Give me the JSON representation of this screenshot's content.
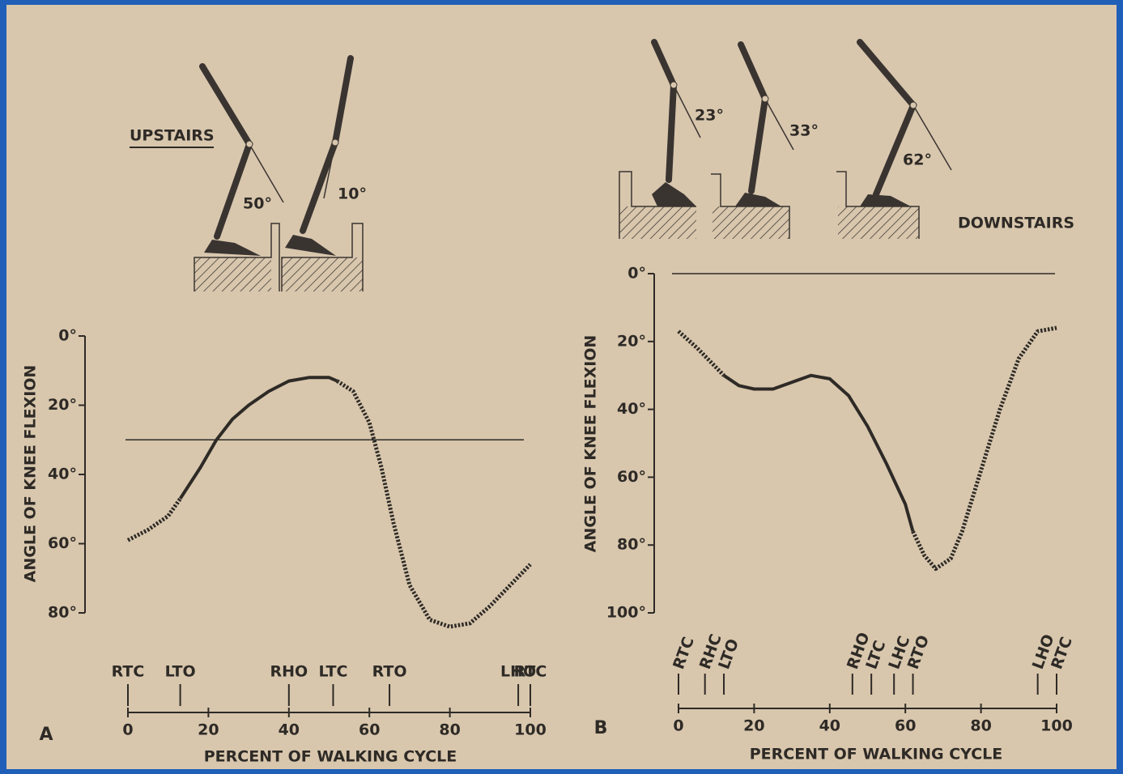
{
  "chart_data": [
    {
      "type": "line",
      "panel": "A",
      "title": "UPSTAIRS",
      "xlabel": "PERCENT OF WALKING CYCLE",
      "ylabel": "ANGLE OF KNEE FLEXION",
      "xlim": [
        0,
        100
      ],
      "xticks": [
        0,
        20,
        40,
        60,
        80,
        100
      ],
      "ylim": [
        80,
        0
      ],
      "yticks": [
        {
          "value": 0,
          "label": "0°"
        },
        {
          "value": 20,
          "label": "20°"
        },
        {
          "value": 40,
          "label": "40°"
        },
        {
          "value": 60,
          "label": "60°"
        },
        {
          "value": 80,
          "label": "80°"
        }
      ],
      "ref_line": 30,
      "segments": [
        {
          "style": "dotted",
          "x": [
            0,
            5,
            10,
            13
          ],
          "values": [
            59,
            56,
            52,
            47
          ]
        },
        {
          "style": "solid",
          "x": [
            13,
            18,
            22,
            26,
            30,
            35,
            40,
            45,
            50,
            52
          ],
          "values": [
            47,
            38,
            30,
            24,
            20,
            16,
            13,
            12,
            12,
            13
          ]
        },
        {
          "style": "dotted",
          "x": [
            52,
            56,
            60,
            63,
            66,
            70,
            75,
            80,
            85,
            90,
            95,
            100
          ],
          "values": [
            13,
            16,
            25,
            38,
            54,
            72,
            82,
            84,
            83,
            78,
            72,
            66
          ]
        }
      ],
      "events": [
        {
          "label": "RTC",
          "x": 0
        },
        {
          "label": "LTO",
          "x": 13
        },
        {
          "label": "RHO",
          "x": 40
        },
        {
          "label": "LTC",
          "x": 51
        },
        {
          "label": "RTO",
          "x": 65
        },
        {
          "label": "LHO",
          "x": 97
        },
        {
          "label": "RTC",
          "x": 100
        }
      ],
      "annotations": [
        "50°",
        "10°"
      ]
    },
    {
      "type": "line",
      "panel": "B",
      "title": "DOWNSTAIRS",
      "xlabel": "PERCENT OF WALKING CYCLE",
      "ylabel": "ANGLE OF KNEE FLEXION",
      "xlim": [
        0,
        100
      ],
      "xticks": [
        0,
        20,
        40,
        60,
        80,
        100
      ],
      "ylim": [
        100,
        0
      ],
      "yticks": [
        {
          "value": 0,
          "label": "0°"
        },
        {
          "value": 20,
          "label": "20°"
        },
        {
          "value": 40,
          "label": "40°"
        },
        {
          "value": 60,
          "label": "60°"
        },
        {
          "value": 80,
          "label": "80°"
        },
        {
          "value": 100,
          "label": "100°"
        }
      ],
      "ref_line": 0,
      "segments": [
        {
          "style": "dotted",
          "x": [
            0,
            5,
            12
          ],
          "values": [
            17,
            22,
            30
          ]
        },
        {
          "style": "solid",
          "x": [
            12,
            16,
            20,
            25,
            30,
            35,
            40,
            45,
            50,
            55,
            60,
            62
          ],
          "values": [
            30,
            33,
            34,
            34,
            32,
            30,
            31,
            36,
            45,
            56,
            68,
            76
          ]
        },
        {
          "style": "dotted",
          "x": [
            62,
            65,
            68,
            72,
            75,
            80,
            85,
            90,
            95,
            100
          ],
          "values": [
            76,
            83,
            87,
            84,
            76,
            58,
            40,
            25,
            17,
            16
          ]
        }
      ],
      "events": [
        {
          "label": "RTC",
          "x": 0
        },
        {
          "label": "RHC",
          "x": 7
        },
        {
          "label": "LTO",
          "x": 12
        },
        {
          "label": "RHO",
          "x": 46
        },
        {
          "label": "LTC",
          "x": 51
        },
        {
          "label": "LHC",
          "x": 57
        },
        {
          "label": "RTO",
          "x": 62
        },
        {
          "label": "LHO",
          "x": 95
        },
        {
          "label": "RTC",
          "x": 100
        }
      ],
      "annotations": [
        "23°",
        "33°",
        "62°"
      ]
    }
  ]
}
